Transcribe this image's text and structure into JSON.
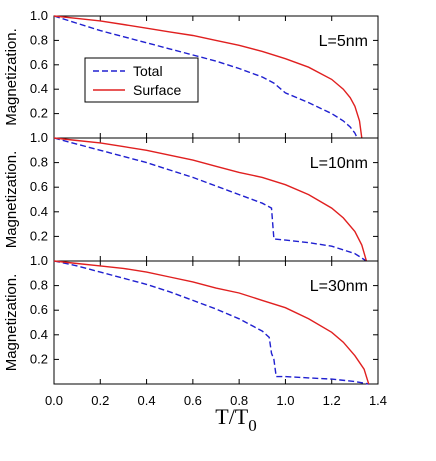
{
  "chart_data": [
    {
      "type": "line",
      "panel_label": "L=5nm",
      "ylabel": "Magnetization.",
      "xlim": [
        0,
        1.4
      ],
      "ylim": [
        0,
        1.0
      ],
      "yticks": [
        "",
        "0.2",
        "0.4",
        "0.6",
        "0.8",
        "1.0"
      ],
      "ytick_values": [
        0,
        0.2,
        0.4,
        0.6,
        0.8,
        1.0
      ],
      "legend_placement": "upper-left",
      "series": [
        {
          "name": "Total",
          "color": "#2020d0",
          "style": "dashed",
          "x": [
            0,
            0.1,
            0.2,
            0.3,
            0.4,
            0.5,
            0.6,
            0.7,
            0.8,
            0.9,
            0.95,
            1.0,
            1.1,
            1.2,
            1.25,
            1.28,
            1.3,
            1.31
          ],
          "y": [
            1.0,
            0.94,
            0.88,
            0.83,
            0.78,
            0.73,
            0.68,
            0.63,
            0.57,
            0.5,
            0.45,
            0.37,
            0.29,
            0.2,
            0.14,
            0.09,
            0.04,
            0.0
          ]
        },
        {
          "name": "Surface",
          "color": "#e02020",
          "style": "solid",
          "x": [
            0,
            0.1,
            0.2,
            0.3,
            0.4,
            0.5,
            0.6,
            0.7,
            0.8,
            0.9,
            1.0,
            1.1,
            1.2,
            1.25,
            1.28,
            1.3,
            1.32,
            1.33
          ],
          "y": [
            1.0,
            0.98,
            0.96,
            0.93,
            0.9,
            0.87,
            0.84,
            0.8,
            0.76,
            0.71,
            0.65,
            0.58,
            0.48,
            0.4,
            0.33,
            0.26,
            0.14,
            0.0
          ]
        }
      ]
    },
    {
      "type": "line",
      "panel_label": "L=10nm",
      "ylabel": "Magnetization.",
      "xlim": [
        0,
        1.4
      ],
      "ylim": [
        0,
        1.0
      ],
      "yticks": [
        "",
        "0.2",
        "0.4",
        "0.6",
        "0.8",
        "1.0"
      ],
      "ytick_values": [
        0,
        0.2,
        0.4,
        0.6,
        0.8,
        1.0
      ],
      "series": [
        {
          "name": "Total",
          "color": "#2020d0",
          "style": "dashed",
          "x": [
            0,
            0.1,
            0.2,
            0.3,
            0.4,
            0.5,
            0.6,
            0.7,
            0.8,
            0.9,
            0.94,
            0.95,
            1.0,
            1.1,
            1.2,
            1.3,
            1.35
          ],
          "y": [
            1.0,
            0.95,
            0.9,
            0.85,
            0.8,
            0.74,
            0.68,
            0.61,
            0.54,
            0.47,
            0.43,
            0.18,
            0.17,
            0.15,
            0.12,
            0.06,
            0.0
          ]
        },
        {
          "name": "Surface",
          "color": "#e02020",
          "style": "solid",
          "x": [
            0,
            0.1,
            0.2,
            0.3,
            0.4,
            0.5,
            0.6,
            0.7,
            0.8,
            0.9,
            1.0,
            1.1,
            1.2,
            1.25,
            1.3,
            1.33,
            1.35
          ],
          "y": [
            1.0,
            0.98,
            0.96,
            0.93,
            0.9,
            0.86,
            0.82,
            0.77,
            0.72,
            0.68,
            0.62,
            0.54,
            0.43,
            0.35,
            0.24,
            0.13,
            0.0
          ]
        }
      ]
    },
    {
      "type": "line",
      "panel_label": "L=30nm",
      "ylabel": "Magnetization.",
      "xlabel": "T/T0",
      "xlim": [
        0,
        1.4
      ],
      "ylim": [
        0,
        1.0
      ],
      "xticks": [
        "0.0",
        "0.2",
        "0.4",
        "0.6",
        "0.8",
        "1.0",
        "1.2",
        "1.4"
      ],
      "xtick_values": [
        0,
        0.2,
        0.4,
        0.6,
        0.8,
        1.0,
        1.2,
        1.4
      ],
      "yticks": [
        "",
        "0.2",
        "0.4",
        "0.6",
        "0.8",
        "1.0"
      ],
      "ytick_values": [
        0,
        0.2,
        0.4,
        0.6,
        0.8,
        1.0
      ],
      "series": [
        {
          "name": "Total",
          "color": "#2020d0",
          "style": "dashed",
          "x": [
            0,
            0.1,
            0.2,
            0.3,
            0.4,
            0.5,
            0.6,
            0.7,
            0.8,
            0.9,
            0.93,
            0.94,
            0.95,
            0.96,
            1.0,
            1.1,
            1.2,
            1.3,
            1.36
          ],
          "y": [
            1.0,
            0.96,
            0.91,
            0.86,
            0.81,
            0.75,
            0.68,
            0.61,
            0.53,
            0.43,
            0.38,
            0.25,
            0.2,
            0.06,
            0.06,
            0.05,
            0.04,
            0.02,
            0.0
          ]
        },
        {
          "name": "Surface",
          "color": "#e02020",
          "style": "solid",
          "x": [
            0,
            0.1,
            0.2,
            0.3,
            0.4,
            0.5,
            0.6,
            0.7,
            0.8,
            0.9,
            1.0,
            1.1,
            1.2,
            1.25,
            1.3,
            1.34,
            1.36
          ],
          "y": [
            1.0,
            0.98,
            0.96,
            0.94,
            0.91,
            0.87,
            0.83,
            0.78,
            0.74,
            0.68,
            0.62,
            0.53,
            0.42,
            0.34,
            0.23,
            0.12,
            0.0
          ]
        }
      ]
    }
  ]
}
